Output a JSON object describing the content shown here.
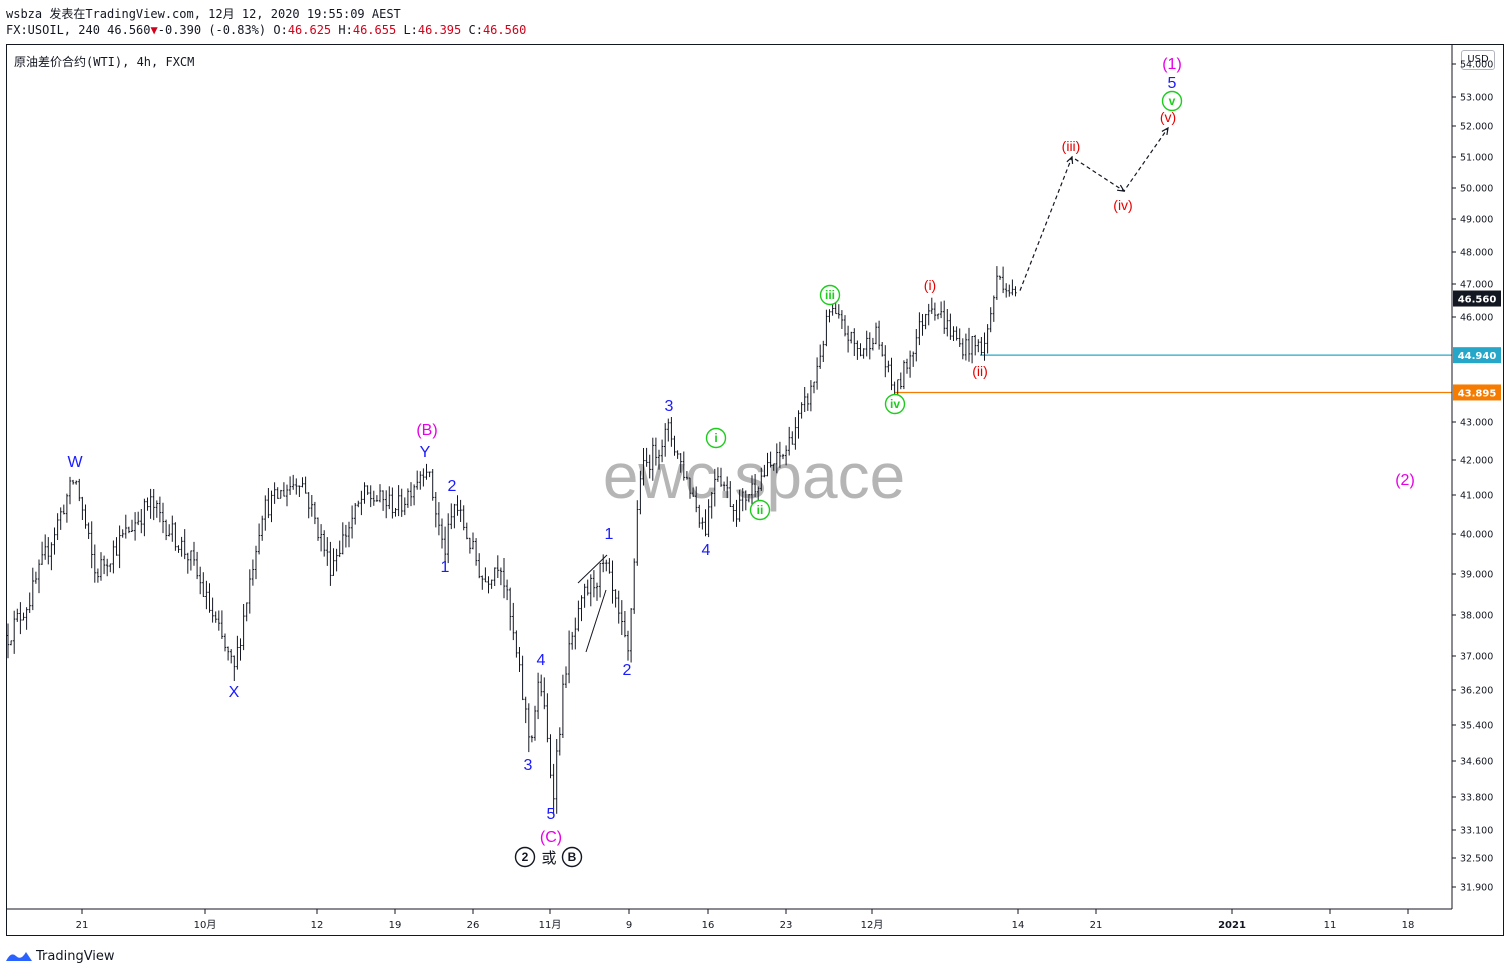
{
  "header": {
    "line1": "wsbza 发表在TradingView.com, 12月 12, 2020 19:55:09 AEST",
    "symbol_interval": "FX:USOIL, 240",
    "last_price": "46.560",
    "change_arrow": "▼",
    "change": "-0.390 (-0.83%)",
    "o_label": "O:",
    "o_value": "46.625",
    "h_label": "H:",
    "h_value": "46.655",
    "l_label": "L:",
    "l_value": "46.395",
    "c_label": "C:",
    "c_value": "46.560"
  },
  "chart_title": "原油差价合约(WTI), 4h, FXCM",
  "currency": "USD",
  "watermark": "ewc.space",
  "footer": {
    "brand": "TradingView"
  },
  "colors": {
    "candle": "#131722",
    "cyan_line": "#26a7c9",
    "orange_line": "#f57c00",
    "label_blue": "#1a1aff",
    "label_magenta": "#e600e6",
    "label_green": "#1ecc1e",
    "label_red": "#e60000",
    "price_tag_bg": "#131722"
  },
  "chart_data": {
    "type": "candlestick",
    "x_ticks": [
      "21",
      "10月",
      "12",
      "19",
      "26",
      "11月",
      "9",
      "16",
      "23",
      "12月",
      "14",
      "21",
      "2021",
      "11",
      "18"
    ],
    "y_ticks": [
      "54.000",
      "53.000",
      "52.000",
      "51.000",
      "50.000",
      "49.000",
      "48.000",
      "47.000",
      "46.000",
      "43.000",
      "42.000",
      "41.000",
      "40.000",
      "39.000",
      "38.000",
      "37.000",
      "36.200",
      "35.400",
      "34.600",
      "33.800",
      "33.100",
      "32.500",
      "31.900"
    ],
    "price_tags": [
      {
        "label": "46.560",
        "value": 46.56
      },
      {
        "label": "44.940",
        "value": 44.94
      },
      {
        "label": "43.895",
        "value": 43.895
      }
    ],
    "horizontal_levels": [
      44.94,
      43.895
    ],
    "key_prices": {
      "start": 37.5,
      "W": 41.5,
      "X": 36.6,
      "B_Y": 41.9,
      "C_5": 33.9,
      "iii": 46.2,
      "iv": 43.8,
      "last": 46.56
    },
    "projection": [
      {
        "label": "(iii)",
        "value": 51.0
      },
      {
        "label": "(iv)",
        "value": 49.9
      },
      {
        "label": "(v)",
        "value": 52.0
      }
    ],
    "wave_labels": {
      "blue": [
        "W",
        "X",
        "Y",
        "1",
        "2",
        "3",
        "4",
        "5",
        "1",
        "2",
        "3",
        "4",
        "5"
      ],
      "magenta": [
        "(B)",
        "(C)",
        "(1)",
        "(2)"
      ],
      "green": [
        "i",
        "ii",
        "iii",
        "iv",
        "v"
      ],
      "red": [
        "(i)",
        "(ii)",
        "(iii)",
        "(iv)",
        "(v)"
      ],
      "black": [
        "2",
        "或",
        "B"
      ]
    }
  }
}
